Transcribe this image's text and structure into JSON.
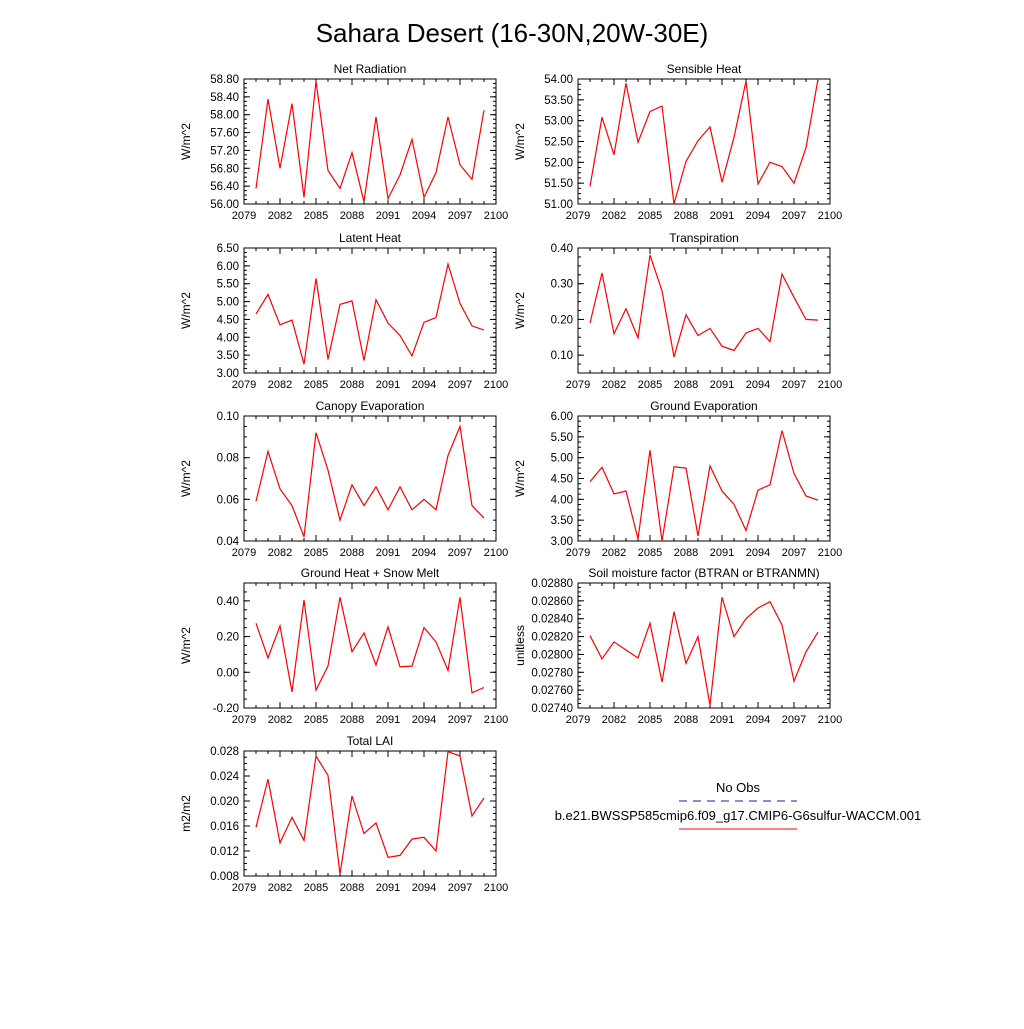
{
  "figure": {
    "title": "Sahara Desert (16-30N,20W-30E)",
    "legend": {
      "entries": [
        {
          "label": "No Obs",
          "color": "#1f1f8f",
          "dashed": true
        },
        {
          "label": "b.e21.BWSSP585cmip6.f09_g17.CMIP6-G6sulfur-WACCM.001",
          "color": "#ff0000",
          "dashed": false
        }
      ]
    }
  },
  "chart_data": [
    {
      "type": "line",
      "title": "Net Radiation",
      "ylabel": "W/m^2",
      "ylim": [
        56.0,
        58.8
      ],
      "yticks": [
        56.0,
        56.4,
        56.8,
        57.2,
        57.6,
        58.0,
        58.4,
        58.8
      ],
      "ytick_labels": [
        "56.00",
        "56.40",
        "56.80",
        "57.20",
        "57.60",
        "58.00",
        "58.40",
        "58.80"
      ],
      "xlim": [
        2079,
        2100
      ],
      "xticks": [
        2079,
        2082,
        2085,
        2088,
        2091,
        2094,
        2097,
        2100
      ],
      "series": [
        {
          "color": "#ff0000",
          "x": [
            2080,
            2081,
            2082,
            2083,
            2084,
            2085,
            2086,
            2087,
            2088,
            2089,
            2090,
            2091,
            2092,
            2093,
            2094,
            2095,
            2096,
            2097,
            2098,
            2099
          ],
          "values": [
            56.35,
            58.35,
            56.8,
            58.25,
            56.15,
            58.75,
            56.75,
            56.35,
            57.15,
            56.05,
            57.95,
            56.12,
            56.65,
            57.45,
            56.15,
            56.7,
            57.95,
            56.88,
            56.55,
            58.1
          ]
        }
      ]
    },
    {
      "type": "line",
      "title": "Sensible Heat",
      "ylabel": "W/m^2",
      "ylim": [
        51.0,
        54.0
      ],
      "yticks": [
        51.0,
        51.5,
        52.0,
        52.5,
        53.0,
        53.5,
        54.0
      ],
      "ytick_labels": [
        "51.00",
        "51.50",
        "52.00",
        "52.50",
        "53.00",
        "53.50",
        "54.00"
      ],
      "xlim": [
        2079,
        2100
      ],
      "xticks": [
        2079,
        2082,
        2085,
        2088,
        2091,
        2094,
        2097,
        2100
      ],
      "series": [
        {
          "color": "#ff0000",
          "x": [
            2080,
            2081,
            2082,
            2083,
            2084,
            2085,
            2086,
            2087,
            2088,
            2089,
            2090,
            2091,
            2092,
            2093,
            2094,
            2095,
            2096,
            2097,
            2098,
            2099
          ],
          "values": [
            51.42,
            53.08,
            52.18,
            53.9,
            52.48,
            53.22,
            53.35,
            51.0,
            52.02,
            52.52,
            52.85,
            51.52,
            52.6,
            53.95,
            51.48,
            52.0,
            51.9,
            51.5,
            52.35,
            54.0
          ]
        }
      ]
    },
    {
      "type": "line",
      "title": "Latent Heat",
      "ylabel": "W/m^2",
      "ylim": [
        3.0,
        6.5
      ],
      "yticks": [
        3.0,
        3.5,
        4.0,
        4.5,
        5.0,
        5.5,
        6.0,
        6.5
      ],
      "ytick_labels": [
        "3.00",
        "3.50",
        "4.00",
        "4.50",
        "5.00",
        "5.50",
        "6.00",
        "6.50"
      ],
      "xlim": [
        2079,
        2100
      ],
      "xticks": [
        2079,
        2082,
        2085,
        2088,
        2091,
        2094,
        2097,
        2100
      ],
      "series": [
        {
          "color": "#ff0000",
          "x": [
            2080,
            2081,
            2082,
            2083,
            2084,
            2085,
            2086,
            2087,
            2088,
            2089,
            2090,
            2091,
            2092,
            2093,
            2094,
            2095,
            2096,
            2097,
            2098,
            2099
          ],
          "values": [
            4.65,
            5.2,
            4.35,
            4.48,
            3.25,
            5.65,
            3.38,
            4.92,
            5.02,
            3.35,
            5.05,
            4.4,
            4.05,
            3.48,
            4.42,
            4.55,
            6.05,
            4.95,
            4.32,
            4.2
          ]
        }
      ]
    },
    {
      "type": "line",
      "title": "Transpiration",
      "ylabel": "W/m^2",
      "ylim": [
        0.05,
        0.4
      ],
      "yticks": [
        0.1,
        0.2,
        0.3,
        0.4
      ],
      "ytick_labels": [
        "0.10",
        "0.20",
        "0.30",
        "0.40"
      ],
      "xlim": [
        2079,
        2100
      ],
      "xticks": [
        2079,
        2082,
        2085,
        2088,
        2091,
        2094,
        2097,
        2100
      ],
      "series": [
        {
          "color": "#ff0000",
          "x": [
            2080,
            2081,
            2082,
            2083,
            2084,
            2085,
            2086,
            2087,
            2088,
            2089,
            2090,
            2091,
            2092,
            2093,
            2094,
            2095,
            2096,
            2097,
            2098,
            2099
          ],
          "values": [
            0.19,
            0.33,
            0.16,
            0.23,
            0.148,
            0.38,
            0.28,
            0.095,
            0.213,
            0.155,
            0.175,
            0.125,
            0.113,
            0.162,
            0.175,
            0.138,
            0.327,
            0.262,
            0.2,
            0.198
          ]
        }
      ]
    },
    {
      "type": "line",
      "title": "Canopy Evaporation",
      "ylabel": "W/m^2",
      "ylim": [
        0.04,
        0.1
      ],
      "yticks": [
        0.04,
        0.06,
        0.08,
        0.1
      ],
      "ytick_labels": [
        "0.04",
        "0.06",
        "0.08",
        "0.10"
      ],
      "xlim": [
        2079,
        2100
      ],
      "xticks": [
        2079,
        2082,
        2085,
        2088,
        2091,
        2094,
        2097,
        2100
      ],
      "series": [
        {
          "color": "#ff0000",
          "x": [
            2080,
            2081,
            2082,
            2083,
            2084,
            2085,
            2086,
            2087,
            2088,
            2089,
            2090,
            2091,
            2092,
            2093,
            2094,
            2095,
            2096,
            2097,
            2098,
            2099
          ],
          "values": [
            0.059,
            0.083,
            0.065,
            0.057,
            0.042,
            0.092,
            0.074,
            0.05,
            0.067,
            0.057,
            0.066,
            0.055,
            0.066,
            0.055,
            0.06,
            0.055,
            0.081,
            0.095,
            0.057,
            0.051
          ]
        }
      ]
    },
    {
      "type": "line",
      "title": "Ground Evaporation",
      "ylabel": "W/m^2",
      "ylim": [
        3.0,
        6.0
      ],
      "yticks": [
        3.0,
        3.5,
        4.0,
        4.5,
        5.0,
        5.5,
        6.0
      ],
      "ytick_labels": [
        "3.00",
        "3.50",
        "4.00",
        "4.50",
        "5.00",
        "5.50",
        "6.00"
      ],
      "xlim": [
        2079,
        2100
      ],
      "xticks": [
        2079,
        2082,
        2085,
        2088,
        2091,
        2094,
        2097,
        2100
      ],
      "series": [
        {
          "color": "#ff0000",
          "x": [
            2080,
            2081,
            2082,
            2083,
            2084,
            2085,
            2086,
            2087,
            2088,
            2089,
            2090,
            2091,
            2092,
            2093,
            2094,
            2095,
            2096,
            2097,
            2098,
            2099
          ],
          "values": [
            4.42,
            4.77,
            4.13,
            4.2,
            3.05,
            5.18,
            3.0,
            4.78,
            4.75,
            3.12,
            4.8,
            4.2,
            3.88,
            3.25,
            4.22,
            4.35,
            5.65,
            4.62,
            4.08,
            3.98
          ]
        }
      ]
    },
    {
      "type": "line",
      "title": "Ground Heat + Snow Melt",
      "ylabel": "W/m^2",
      "ylim": [
        -0.2,
        0.5
      ],
      "yticks": [
        -0.2,
        0.0,
        0.2,
        0.4
      ],
      "ytick_labels": [
        "-0.20",
        "0.00",
        "0.20",
        "0.40"
      ],
      "xlim": [
        2079,
        2100
      ],
      "xticks": [
        2079,
        2082,
        2085,
        2088,
        2091,
        2094,
        2097,
        2100
      ],
      "series": [
        {
          "color": "#ff0000",
          "x": [
            2080,
            2081,
            2082,
            2083,
            2084,
            2085,
            2086,
            2087,
            2088,
            2089,
            2090,
            2091,
            2092,
            2093,
            2094,
            2095,
            2096,
            2097,
            2098,
            2099
          ],
          "values": [
            0.275,
            0.08,
            0.26,
            -0.11,
            0.405,
            -0.1,
            0.035,
            0.42,
            0.115,
            0.22,
            0.04,
            0.255,
            0.03,
            0.035,
            0.25,
            0.17,
            0.01,
            0.42,
            -0.115,
            -0.085
          ]
        }
      ]
    },
    {
      "type": "line",
      "title": "Soil moisture factor (BTRAN or BTRANMN)",
      "ylabel": "unitless",
      "ylim": [
        0.0274,
        0.0288
      ],
      "yticks": [
        0.0274,
        0.0276,
        0.0278,
        0.028,
        0.0282,
        0.0284,
        0.0286,
        0.0288
      ],
      "ytick_labels": [
        "0.02740",
        "0.02760",
        "0.02780",
        "0.02800",
        "0.02820",
        "0.02840",
        "0.02860",
        "0.02880"
      ],
      "xlim": [
        2079,
        2100
      ],
      "xticks": [
        2079,
        2082,
        2085,
        2088,
        2091,
        2094,
        2097,
        2100
      ],
      "series": [
        {
          "color": "#ff0000",
          "x": [
            2080,
            2081,
            2082,
            2083,
            2084,
            2085,
            2086,
            2087,
            2088,
            2089,
            2090,
            2091,
            2092,
            2093,
            2094,
            2095,
            2096,
            2097,
            2098,
            2099
          ],
          "values": [
            0.02821,
            0.02795,
            0.02814,
            0.02805,
            0.02796,
            0.02835,
            0.02769,
            0.02848,
            0.0279,
            0.0282,
            0.02743,
            0.02864,
            0.0282,
            0.0284,
            0.02852,
            0.02859,
            0.02833,
            0.0277,
            0.02803,
            0.02825
          ]
        }
      ]
    },
    {
      "type": "line",
      "title": "Total LAI",
      "ylabel": "m2/m2",
      "ylim": [
        0.008,
        0.028
      ],
      "yticks": [
        0.008,
        0.012,
        0.016,
        0.02,
        0.024,
        0.028
      ],
      "ytick_labels": [
        "0.008",
        "0.012",
        "0.016",
        "0.020",
        "0.024",
        "0.028"
      ],
      "xlim": [
        2079,
        2100
      ],
      "xticks": [
        2079,
        2082,
        2085,
        2088,
        2091,
        2094,
        2097,
        2100
      ],
      "series": [
        {
          "color": "#ff0000",
          "x": [
            2080,
            2081,
            2082,
            2083,
            2084,
            2085,
            2086,
            2087,
            2088,
            2089,
            2090,
            2091,
            2092,
            2093,
            2094,
            2095,
            2096,
            2097,
            2098,
            2099
          ],
          "values": [
            0.0158,
            0.0235,
            0.0133,
            0.0174,
            0.0137,
            0.0272,
            0.0241,
            0.0083,
            0.0208,
            0.0148,
            0.0165,
            0.011,
            0.0113,
            0.0139,
            0.0142,
            0.012,
            0.0279,
            0.0272,
            0.0176,
            0.0205
          ]
        }
      ]
    }
  ]
}
